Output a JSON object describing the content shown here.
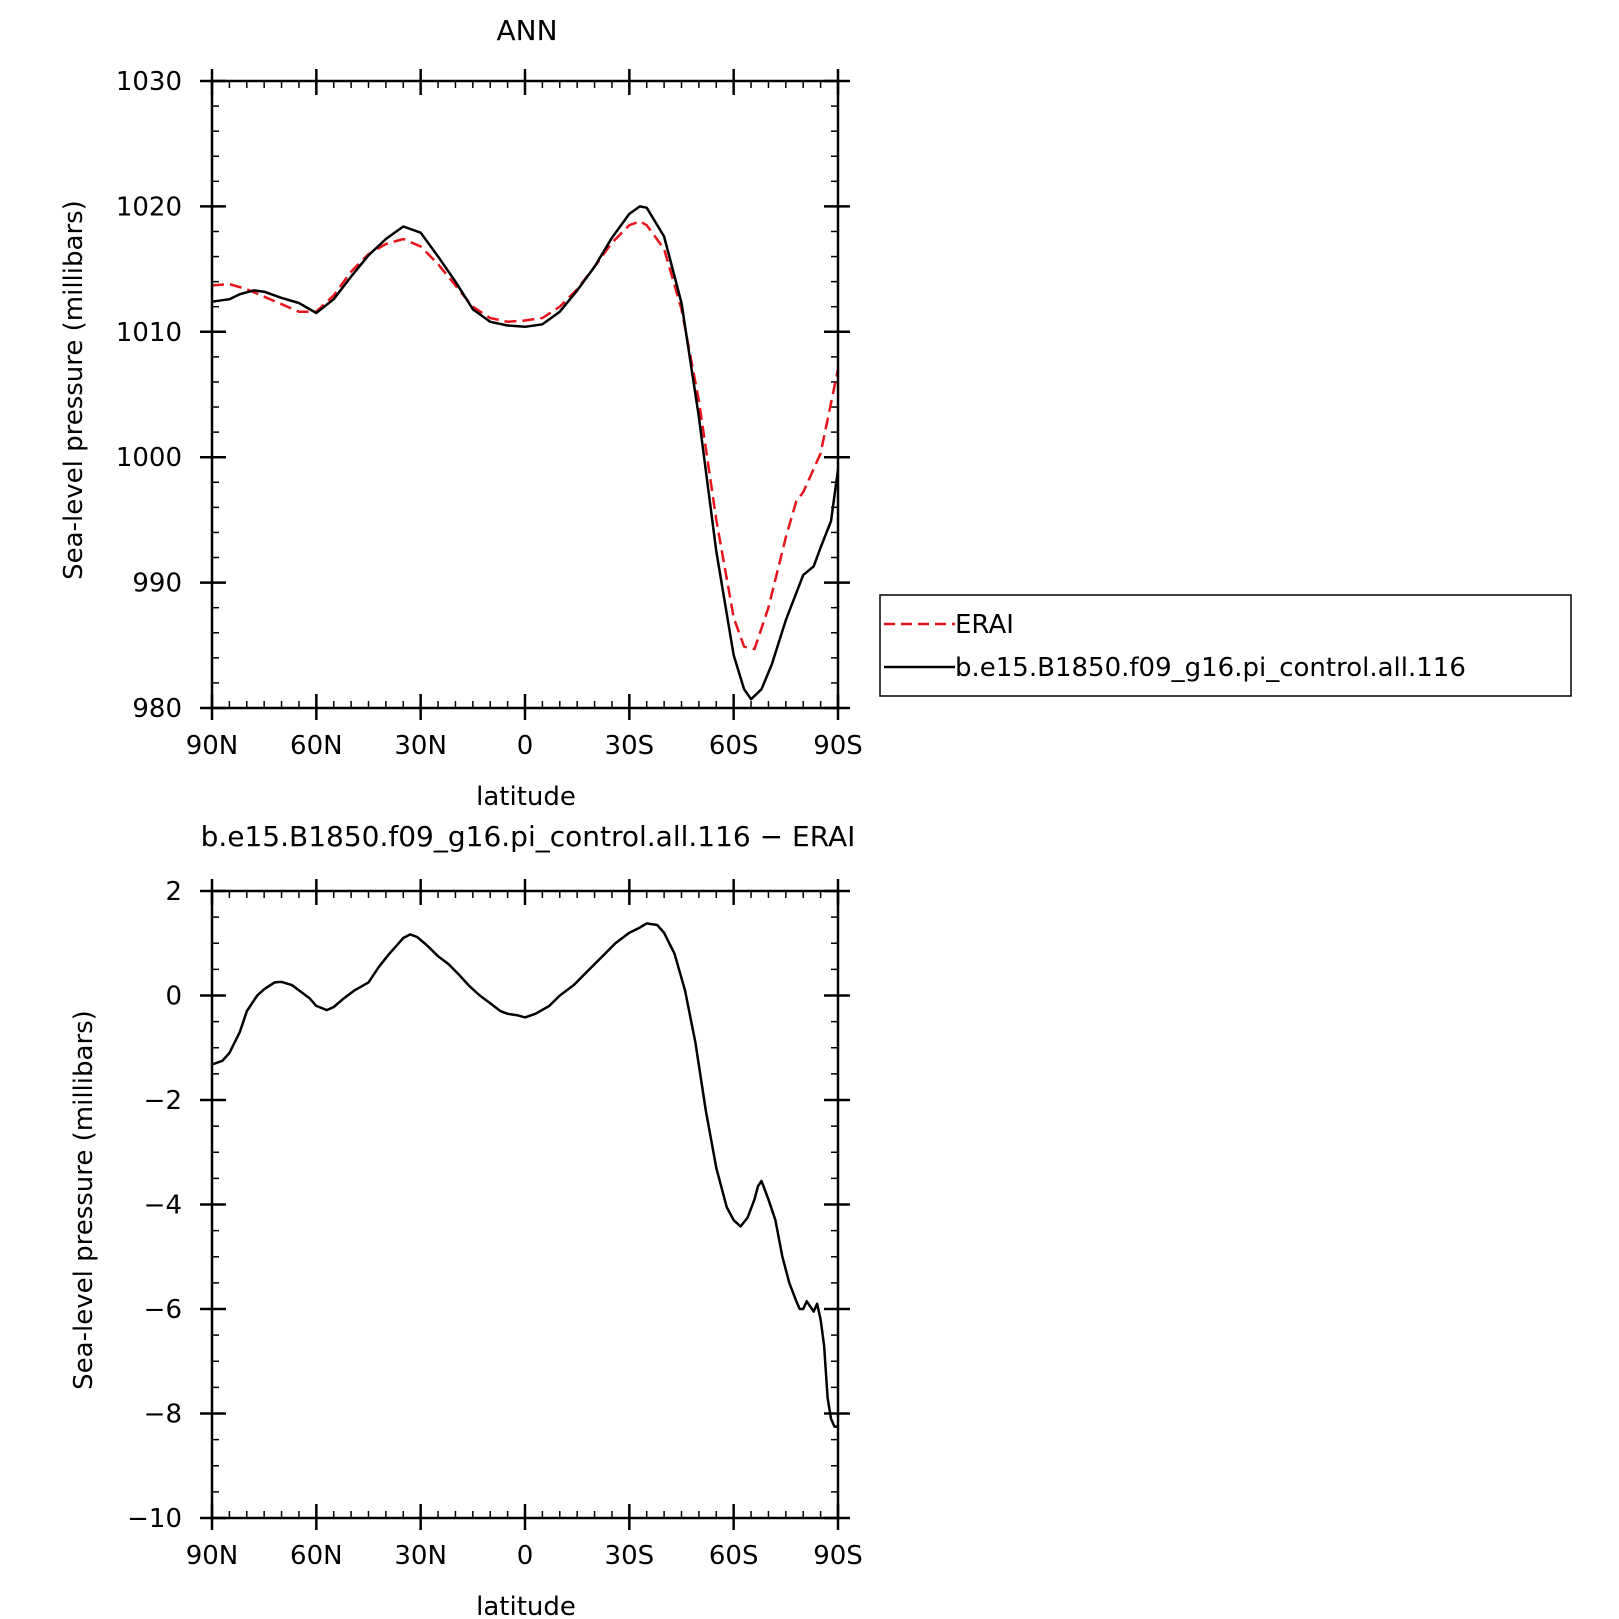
{
  "chart_data": [
    {
      "type": "line",
      "title": "ANN",
      "xlabel": "latitude",
      "ylabel": "Sea-level pressure (millibars)",
      "xlim": [
        90,
        -90
      ],
      "ylim": [
        980,
        1030
      ],
      "x_ticks": [
        {
          "value": 90,
          "label": "90N"
        },
        {
          "value": 60,
          "label": "60N"
        },
        {
          "value": 30,
          "label": "30N"
        },
        {
          "value": 0,
          "label": "0"
        },
        {
          "value": -30,
          "label": "30S"
        },
        {
          "value": -60,
          "label": "60S"
        },
        {
          "value": -90,
          "label": "90S"
        }
      ],
      "y_ticks": [
        {
          "value": 980,
          "label": "980"
        },
        {
          "value": 990,
          "label": "990"
        },
        {
          "value": 1000,
          "label": "1000"
        },
        {
          "value": 1010,
          "label": "1010"
        },
        {
          "value": 1020,
          "label": "1020"
        },
        {
          "value": 1030,
          "label": "1030"
        }
      ],
      "grid": false,
      "legend": "right",
      "series": [
        {
          "name": "ERAI",
          "color": "#e8141c",
          "dash": true,
          "points": [
            [
              90,
              1013.7
            ],
            [
              85,
              1013.8
            ],
            [
              80,
              1013.4
            ],
            [
              75,
              1012.8
            ],
            [
              70,
              1012.2
            ],
            [
              65,
              1011.6
            ],
            [
              60,
              1011.6
            ],
            [
              55,
              1012.9
            ],
            [
              50,
              1014.8
            ],
            [
              45,
              1016.2
            ],
            [
              40,
              1017.0
            ],
            [
              35,
              1017.4
            ],
            [
              30,
              1016.8
            ],
            [
              25,
              1015.4
            ],
            [
              20,
              1013.7
            ],
            [
              15,
              1012.0
            ],
            [
              10,
              1011.1
            ],
            [
              5,
              1010.8
            ],
            [
              0,
              1010.9
            ],
            [
              -5,
              1011.1
            ],
            [
              -10,
              1012.0
            ],
            [
              -15,
              1013.4
            ],
            [
              -20,
              1015.2
            ],
            [
              -25,
              1017.1
            ],
            [
              -30,
              1018.5
            ],
            [
              -33,
              1018.8
            ],
            [
              -35,
              1018.5
            ],
            [
              -40,
              1016.6
            ],
            [
              -45,
              1011.8
            ],
            [
              -50,
              1004.5
            ],
            [
              -55,
              995.0
            ],
            [
              -60,
              987.2
            ],
            [
              -63,
              984.9
            ],
            [
              -66,
              984.7
            ],
            [
              -70,
              988.0
            ],
            [
              -75,
              993.6
            ],
            [
              -78,
              996.5
            ],
            [
              -80,
              997.2
            ],
            [
              -85,
              1000.3
            ],
            [
              -90,
              1007.0
            ]
          ]
        },
        {
          "name": "b.e15.B1850.f09_g16.pi_control.all.116",
          "color": "#000000",
          "dash": false,
          "points": [
            [
              90,
              1012.4
            ],
            [
              85,
              1012.6
            ],
            [
              82,
              1013.0
            ],
            [
              78,
              1013.3
            ],
            [
              75,
              1013.2
            ],
            [
              70,
              1012.7
            ],
            [
              65,
              1012.3
            ],
            [
              60,
              1011.5
            ],
            [
              55,
              1012.6
            ],
            [
              50,
              1014.4
            ],
            [
              45,
              1016.1
            ],
            [
              40,
              1017.4
            ],
            [
              37,
              1018.0
            ],
            [
              35,
              1018.4
            ],
            [
              30,
              1017.9
            ],
            [
              25,
              1016.0
            ],
            [
              20,
              1014.0
            ],
            [
              15,
              1011.8
            ],
            [
              10,
              1010.8
            ],
            [
              5,
              1010.5
            ],
            [
              0,
              1010.4
            ],
            [
              -5,
              1010.6
            ],
            [
              -10,
              1011.6
            ],
            [
              -15,
              1013.3
            ],
            [
              -20,
              1015.2
            ],
            [
              -25,
              1017.5
            ],
            [
              -30,
              1019.4
            ],
            [
              -33,
              1020.0
            ],
            [
              -35,
              1019.9
            ],
            [
              -40,
              1017.6
            ],
            [
              -45,
              1012.3
            ],
            [
              -50,
              1003.2
            ],
            [
              -55,
              992.5
            ],
            [
              -60,
              984.2
            ],
            [
              -63,
              981.5
            ],
            [
              -65,
              980.7
            ],
            [
              -68,
              981.5
            ],
            [
              -71,
              983.5
            ],
            [
              -75,
              987.0
            ],
            [
              -80,
              990.6
            ],
            [
              -83,
              991.3
            ],
            [
              -85,
              992.8
            ],
            [
              -88,
              994.9
            ],
            [
              -90,
              999.0
            ]
          ]
        }
      ]
    },
    {
      "type": "line",
      "title": "b.e15.B1850.f09_g16.pi_control.all.116 − ERAI",
      "xlabel": "latitude",
      "ylabel": "Sea-level pressure (millibars)",
      "xlim": [
        90,
        -90
      ],
      "ylim": [
        -10,
        2
      ],
      "x_ticks": [
        {
          "value": 90,
          "label": "90N"
        },
        {
          "value": 60,
          "label": "60N"
        },
        {
          "value": 30,
          "label": "30N"
        },
        {
          "value": 0,
          "label": "0"
        },
        {
          "value": -30,
          "label": "30S"
        },
        {
          "value": -60,
          "label": "60S"
        },
        {
          "value": -90,
          "label": "90S"
        }
      ],
      "y_ticks": [
        {
          "value": -10,
          "label": "−10"
        },
        {
          "value": -8,
          "label": "−8"
        },
        {
          "value": -6,
          "label": "−6"
        },
        {
          "value": -4,
          "label": "−4"
        },
        {
          "value": -2,
          "label": "−2"
        },
        {
          "value": 0,
          "label": "0"
        },
        {
          "value": 2,
          "label": "2"
        }
      ],
      "grid": false,
      "series": [
        {
          "color": "#000000",
          "dash": false,
          "points": [
            [
              90,
              -1.32
            ],
            [
              87,
              -1.25
            ],
            [
              85,
              -1.1
            ],
            [
              82,
              -0.7
            ],
            [
              80,
              -0.3
            ],
            [
              77,
              0.0
            ],
            [
              75,
              0.12
            ],
            [
              72,
              0.25
            ],
            [
              70,
              0.26
            ],
            [
              67,
              0.2
            ],
            [
              65,
              0.1
            ],
            [
              62,
              -0.05
            ],
            [
              60,
              -0.2
            ],
            [
              57,
              -0.28
            ],
            [
              55,
              -0.22
            ],
            [
              52,
              -0.05
            ],
            [
              49,
              0.1
            ],
            [
              45,
              0.25
            ],
            [
              42,
              0.55
            ],
            [
              39,
              0.8
            ],
            [
              37,
              0.95
            ],
            [
              35,
              1.1
            ],
            [
              33,
              1.17
            ],
            [
              31,
              1.12
            ],
            [
              28,
              0.95
            ],
            [
              25,
              0.75
            ],
            [
              22,
              0.6
            ],
            [
              19,
              0.4
            ],
            [
              16,
              0.18
            ],
            [
              13,
              0.0
            ],
            [
              10,
              -0.15
            ],
            [
              7,
              -0.3
            ],
            [
              5,
              -0.35
            ],
            [
              2,
              -0.38
            ],
            [
              0,
              -0.42
            ],
            [
              -3,
              -0.35
            ],
            [
              -7,
              -0.2
            ],
            [
              -10,
              0.0
            ],
            [
              -14,
              0.2
            ],
            [
              -17,
              0.4
            ],
            [
              -20,
              0.6
            ],
            [
              -23,
              0.8
            ],
            [
              -26,
              1.0
            ],
            [
              -30,
              1.2
            ],
            [
              -33,
              1.3
            ],
            [
              -35,
              1.38
            ],
            [
              -38,
              1.35
            ],
            [
              -40,
              1.2
            ],
            [
              -43,
              0.8
            ],
            [
              -46,
              0.1
            ],
            [
              -49,
              -0.9
            ],
            [
              -52,
              -2.2
            ],
            [
              -55,
              -3.3
            ],
            [
              -58,
              -4.05
            ],
            [
              -60,
              -4.3
            ],
            [
              -62,
              -4.42
            ],
            [
              -64,
              -4.25
            ],
            [
              -66,
              -3.9
            ],
            [
              -67,
              -3.65
            ],
            [
              -68,
              -3.55
            ],
            [
              -70,
              -3.9
            ],
            [
              -72,
              -4.3
            ],
            [
              -74,
              -5.0
            ],
            [
              -76,
              -5.5
            ],
            [
              -78,
              -5.85
            ],
            [
              -79,
              -6.0
            ],
            [
              -80,
              -6.0
            ],
            [
              -81,
              -5.85
            ],
            [
              -82,
              -5.95
            ],
            [
              -83,
              -6.05
            ],
            [
              -84,
              -5.9
            ],
            [
              -85,
              -6.2
            ],
            [
              -86,
              -6.7
            ],
            [
              -87,
              -7.7
            ],
            [
              -88,
              -8.1
            ],
            [
              -89,
              -8.25
            ],
            [
              -90,
              -8.25
            ]
          ]
        }
      ]
    }
  ]
}
